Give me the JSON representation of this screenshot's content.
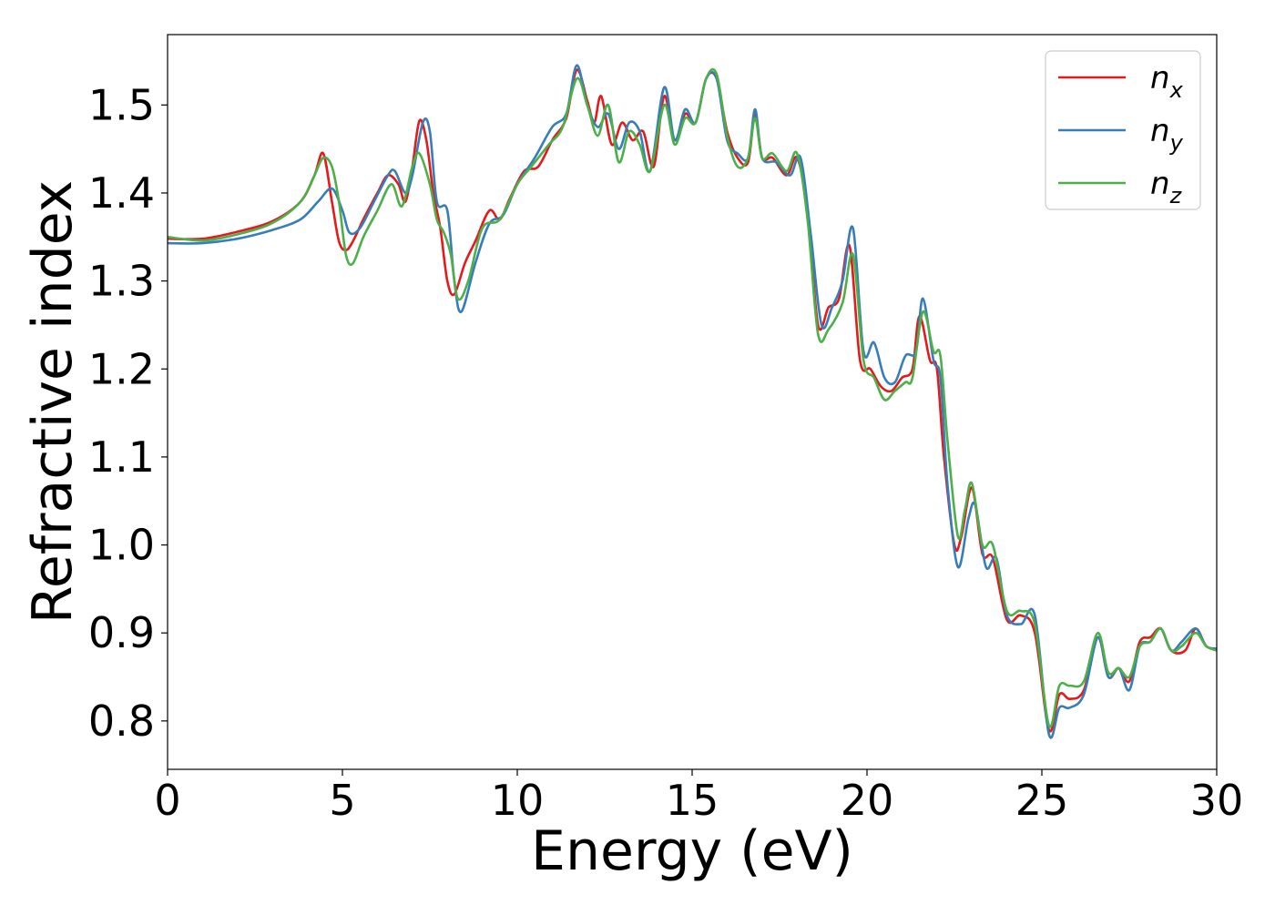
{
  "chart_data": {
    "type": "line",
    "title": "",
    "xlabel": "Energy (eV)",
    "ylabel": "Refractive index",
    "xlim": [
      0,
      30
    ],
    "ylim": [
      0.745,
      1.58
    ],
    "xticks": [
      0,
      5,
      10,
      15,
      20,
      25,
      30
    ],
    "yticks": [
      0.8,
      0.9,
      1.0,
      1.1,
      1.2,
      1.3,
      1.4,
      1.5
    ],
    "grid": false,
    "legend_position": "top-right",
    "series": [
      {
        "name": "n_x",
        "label_base": "n",
        "label_sub": "x",
        "color": "#e41a1c",
        "points": [
          [
            0,
            1.348
          ],
          [
            1,
            1.348
          ],
          [
            2,
            1.356
          ],
          [
            3,
            1.368
          ],
          [
            3.8,
            1.39
          ],
          [
            4.2,
            1.42
          ],
          [
            4.45,
            1.445
          ],
          [
            4.7,
            1.39
          ],
          [
            4.9,
            1.345
          ],
          [
            5.1,
            1.335
          ],
          [
            5.3,
            1.345
          ],
          [
            5.6,
            1.37
          ],
          [
            6,
            1.4
          ],
          [
            6.3,
            1.42
          ],
          [
            6.6,
            1.41
          ],
          [
            6.8,
            1.39
          ],
          [
            7.0,
            1.43
          ],
          [
            7.2,
            1.482
          ],
          [
            7.4,
            1.46
          ],
          [
            7.6,
            1.4
          ],
          [
            7.8,
            1.36
          ],
          [
            8.0,
            1.3
          ],
          [
            8.2,
            1.285
          ],
          [
            8.5,
            1.32
          ],
          [
            8.8,
            1.345
          ],
          [
            9.2,
            1.38
          ],
          [
            9.5,
            1.37
          ],
          [
            9.8,
            1.395
          ],
          [
            10.2,
            1.425
          ],
          [
            10.6,
            1.43
          ],
          [
            11.0,
            1.46
          ],
          [
            11.4,
            1.485
          ],
          [
            11.7,
            1.54
          ],
          [
            12.0,
            1.505
          ],
          [
            12.2,
            1.48
          ],
          [
            12.4,
            1.51
          ],
          [
            12.7,
            1.455
          ],
          [
            13.0,
            1.48
          ],
          [
            13.3,
            1.46
          ],
          [
            13.6,
            1.47
          ],
          [
            13.9,
            1.43
          ],
          [
            14.2,
            1.51
          ],
          [
            14.5,
            1.46
          ],
          [
            14.8,
            1.49
          ],
          [
            15.1,
            1.48
          ],
          [
            15.4,
            1.53
          ],
          [
            15.7,
            1.53
          ],
          [
            16.0,
            1.47
          ],
          [
            16.3,
            1.44
          ],
          [
            16.6,
            1.435
          ],
          [
            16.8,
            1.49
          ],
          [
            17.0,
            1.44
          ],
          [
            17.3,
            1.44
          ],
          [
            17.7,
            1.42
          ],
          [
            18.0,
            1.44
          ],
          [
            18.3,
            1.38
          ],
          [
            18.6,
            1.25
          ],
          [
            18.9,
            1.27
          ],
          [
            19.2,
            1.28
          ],
          [
            19.5,
            1.34
          ],
          [
            19.8,
            1.21
          ],
          [
            20.1,
            1.2
          ],
          [
            20.4,
            1.18
          ],
          [
            20.7,
            1.175
          ],
          [
            21.0,
            1.19
          ],
          [
            21.3,
            1.2
          ],
          [
            21.5,
            1.26
          ],
          [
            21.8,
            1.21
          ],
          [
            22.0,
            1.2
          ],
          [
            22.2,
            1.1
          ],
          [
            22.5,
            1.0
          ],
          [
            22.7,
            1.01
          ],
          [
            23.0,
            1.065
          ],
          [
            23.3,
            0.99
          ],
          [
            23.6,
            0.985
          ],
          [
            24.0,
            0.915
          ],
          [
            24.4,
            0.92
          ],
          [
            24.8,
            0.9
          ],
          [
            25.2,
            0.79
          ],
          [
            25.5,
            0.83
          ],
          [
            25.8,
            0.825
          ],
          [
            26.2,
            0.835
          ],
          [
            26.6,
            0.895
          ],
          [
            26.9,
            0.85
          ],
          [
            27.2,
            0.86
          ],
          [
            27.5,
            0.845
          ],
          [
            27.8,
            0.89
          ],
          [
            28.1,
            0.895
          ],
          [
            28.4,
            0.905
          ],
          [
            28.7,
            0.88
          ],
          [
            29.1,
            0.88
          ],
          [
            29.4,
            0.905
          ],
          [
            29.7,
            0.885
          ],
          [
            30,
            0.882
          ]
        ]
      },
      {
        "name": "n_y",
        "label_base": "n",
        "label_sub": "y",
        "color": "#377eb8",
        "points": [
          [
            0,
            1.343
          ],
          [
            1,
            1.343
          ],
          [
            2,
            1.348
          ],
          [
            3,
            1.358
          ],
          [
            3.8,
            1.37
          ],
          [
            4.3,
            1.39
          ],
          [
            4.7,
            1.405
          ],
          [
            5.0,
            1.38
          ],
          [
            5.2,
            1.355
          ],
          [
            5.5,
            1.36
          ],
          [
            5.9,
            1.39
          ],
          [
            6.3,
            1.42
          ],
          [
            6.5,
            1.425
          ],
          [
            6.8,
            1.4
          ],
          [
            7.0,
            1.42
          ],
          [
            7.3,
            1.48
          ],
          [
            7.5,
            1.47
          ],
          [
            7.7,
            1.39
          ],
          [
            8.0,
            1.38
          ],
          [
            8.2,
            1.3
          ],
          [
            8.4,
            1.265
          ],
          [
            8.8,
            1.32
          ],
          [
            9.2,
            1.365
          ],
          [
            9.6,
            1.375
          ],
          [
            10.0,
            1.41
          ],
          [
            10.5,
            1.44
          ],
          [
            11.0,
            1.475
          ],
          [
            11.4,
            1.49
          ],
          [
            11.7,
            1.545
          ],
          [
            12.0,
            1.5
          ],
          [
            12.3,
            1.475
          ],
          [
            12.6,
            1.49
          ],
          [
            12.9,
            1.45
          ],
          [
            13.2,
            1.48
          ],
          [
            13.5,
            1.47
          ],
          [
            13.8,
            1.425
          ],
          [
            14.2,
            1.52
          ],
          [
            14.5,
            1.46
          ],
          [
            14.8,
            1.495
          ],
          [
            15.1,
            1.48
          ],
          [
            15.4,
            1.53
          ],
          [
            15.7,
            1.53
          ],
          [
            16.0,
            1.46
          ],
          [
            16.3,
            1.445
          ],
          [
            16.6,
            1.44
          ],
          [
            16.8,
            1.495
          ],
          [
            17.0,
            1.44
          ],
          [
            17.4,
            1.435
          ],
          [
            17.8,
            1.42
          ],
          [
            18.1,
            1.44
          ],
          [
            18.4,
            1.35
          ],
          [
            18.7,
            1.25
          ],
          [
            19.0,
            1.27
          ],
          [
            19.3,
            1.3
          ],
          [
            19.6,
            1.36
          ],
          [
            19.9,
            1.22
          ],
          [
            20.2,
            1.23
          ],
          [
            20.5,
            1.19
          ],
          [
            20.8,
            1.185
          ],
          [
            21.1,
            1.215
          ],
          [
            21.4,
            1.22
          ],
          [
            21.6,
            1.28
          ],
          [
            21.9,
            1.21
          ],
          [
            22.1,
            1.19
          ],
          [
            22.3,
            1.07
          ],
          [
            22.6,
            0.975
          ],
          [
            22.9,
            1.03
          ],
          [
            23.1,
            1.045
          ],
          [
            23.4,
            0.975
          ],
          [
            23.7,
            0.985
          ],
          [
            24.0,
            0.92
          ],
          [
            24.4,
            0.91
          ],
          [
            24.8,
            0.92
          ],
          [
            25.2,
            0.785
          ],
          [
            25.5,
            0.815
          ],
          [
            25.8,
            0.815
          ],
          [
            26.2,
            0.83
          ],
          [
            26.6,
            0.895
          ],
          [
            26.9,
            0.85
          ],
          [
            27.2,
            0.86
          ],
          [
            27.5,
            0.835
          ],
          [
            27.8,
            0.885
          ],
          [
            28.1,
            0.89
          ],
          [
            28.4,
            0.905
          ],
          [
            28.7,
            0.88
          ],
          [
            29.0,
            0.89
          ],
          [
            29.4,
            0.905
          ],
          [
            29.7,
            0.885
          ],
          [
            30,
            0.882
          ]
        ]
      },
      {
        "name": "n_z",
        "label_base": "n",
        "label_sub": "z",
        "color": "#4daf4a",
        "points": [
          [
            0,
            1.35
          ],
          [
            1,
            1.346
          ],
          [
            2,
            1.353
          ],
          [
            3,
            1.366
          ],
          [
            3.8,
            1.39
          ],
          [
            4.2,
            1.42
          ],
          [
            4.45,
            1.44
          ],
          [
            4.7,
            1.43
          ],
          [
            4.9,
            1.39
          ],
          [
            5.1,
            1.33
          ],
          [
            5.3,
            1.32
          ],
          [
            5.6,
            1.35
          ],
          [
            6.0,
            1.38
          ],
          [
            6.4,
            1.41
          ],
          [
            6.7,
            1.385
          ],
          [
            7.0,
            1.43
          ],
          [
            7.2,
            1.445
          ],
          [
            7.5,
            1.41
          ],
          [
            7.7,
            1.37
          ],
          [
            7.9,
            1.355
          ],
          [
            8.1,
            1.33
          ],
          [
            8.3,
            1.28
          ],
          [
            8.6,
            1.3
          ],
          [
            9.0,
            1.36
          ],
          [
            9.5,
            1.37
          ],
          [
            10.0,
            1.41
          ],
          [
            10.4,
            1.43
          ],
          [
            10.9,
            1.455
          ],
          [
            11.3,
            1.475
          ],
          [
            11.7,
            1.53
          ],
          [
            12.0,
            1.5
          ],
          [
            12.3,
            1.465
          ],
          [
            12.6,
            1.5
          ],
          [
            12.9,
            1.435
          ],
          [
            13.2,
            1.47
          ],
          [
            13.5,
            1.455
          ],
          [
            13.8,
            1.425
          ],
          [
            14.2,
            1.5
          ],
          [
            14.5,
            1.455
          ],
          [
            14.8,
            1.485
          ],
          [
            15.1,
            1.48
          ],
          [
            15.4,
            1.53
          ],
          [
            15.7,
            1.535
          ],
          [
            16.0,
            1.465
          ],
          [
            16.3,
            1.43
          ],
          [
            16.6,
            1.44
          ],
          [
            16.8,
            1.485
          ],
          [
            17.0,
            1.44
          ],
          [
            17.3,
            1.445
          ],
          [
            17.7,
            1.425
          ],
          [
            18.0,
            1.445
          ],
          [
            18.3,
            1.37
          ],
          [
            18.6,
            1.24
          ],
          [
            18.9,
            1.245
          ],
          [
            19.3,
            1.275
          ],
          [
            19.6,
            1.33
          ],
          [
            19.9,
            1.21
          ],
          [
            20.2,
            1.19
          ],
          [
            20.5,
            1.165
          ],
          [
            20.8,
            1.175
          ],
          [
            21.1,
            1.185
          ],
          [
            21.3,
            1.19
          ],
          [
            21.6,
            1.265
          ],
          [
            21.9,
            1.22
          ],
          [
            22.1,
            1.215
          ],
          [
            22.3,
            1.12
          ],
          [
            22.6,
            1.01
          ],
          [
            22.8,
            1.04
          ],
          [
            23.0,
            1.07
          ],
          [
            23.3,
            1.0
          ],
          [
            23.6,
            1.0
          ],
          [
            24.0,
            0.925
          ],
          [
            24.4,
            0.925
          ],
          [
            24.8,
            0.91
          ],
          [
            25.2,
            0.795
          ],
          [
            25.5,
            0.84
          ],
          [
            25.8,
            0.84
          ],
          [
            26.2,
            0.845
          ],
          [
            26.6,
            0.9
          ],
          [
            26.9,
            0.855
          ],
          [
            27.2,
            0.86
          ],
          [
            27.5,
            0.85
          ],
          [
            27.8,
            0.885
          ],
          [
            28.1,
            0.89
          ],
          [
            28.4,
            0.905
          ],
          [
            28.7,
            0.88
          ],
          [
            29.0,
            0.885
          ],
          [
            29.4,
            0.9
          ],
          [
            29.7,
            0.885
          ],
          [
            30,
            0.88
          ]
        ]
      }
    ]
  }
}
